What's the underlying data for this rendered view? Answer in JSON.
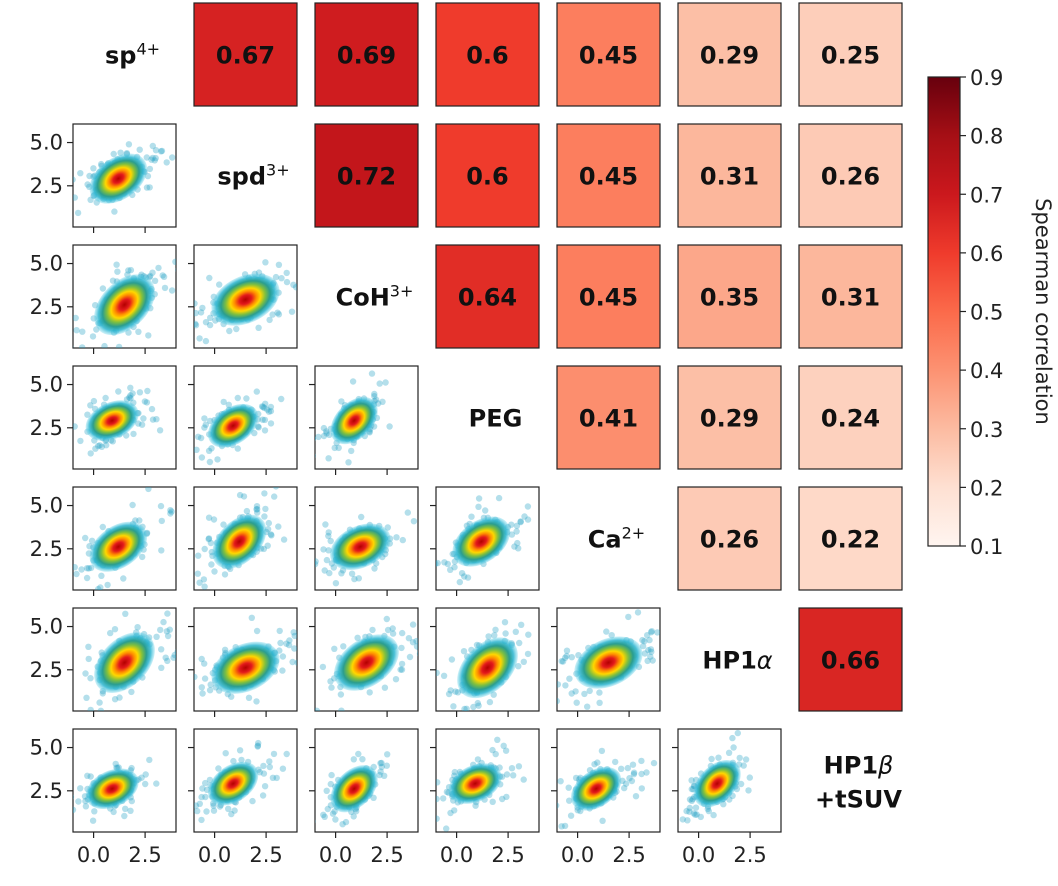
{
  "chart_data": {
    "type": "heatmap",
    "variables": [
      {
        "base": "sp",
        "sup": "4+"
      },
      {
        "base": "spd",
        "sup": "3+"
      },
      {
        "base": "CoH",
        "sup": "3+"
      },
      {
        "base": "PEG"
      },
      {
        "base": "Ca",
        "sup": "2+"
      },
      {
        "base": "HP1",
        "greek": "α"
      },
      {
        "base": "HP1",
        "greek": "β",
        "line2": "+tSUV"
      }
    ],
    "upper_triangle_values": [
      [
        "0.67",
        "0.69",
        "0.6",
        "0.45",
        "0.29",
        "0.25"
      ],
      [
        "0.72",
        "0.6",
        "0.45",
        "0.31",
        "0.26"
      ],
      [
        "0.64",
        "0.45",
        "0.35",
        "0.31"
      ],
      [
        "0.41",
        "0.29",
        "0.24"
      ],
      [
        "0.26",
        "0.22"
      ],
      [
        "0.66"
      ]
    ],
    "lower_triangle": "pairwise density scatter plots",
    "scatter_axis": {
      "x_ticks": [
        "0.0",
        "2.5"
      ],
      "y_ticks": [
        "5.0",
        "2.5"
      ]
    },
    "colorbar": {
      "label": "Spearman correlation",
      "range": [
        0.1,
        0.9
      ],
      "ticks": [
        "0.9",
        "0.8",
        "0.7",
        "0.6",
        "0.5",
        "0.4",
        "0.3",
        "0.2",
        "0.1"
      ],
      "colormap": "Reds"
    }
  }
}
